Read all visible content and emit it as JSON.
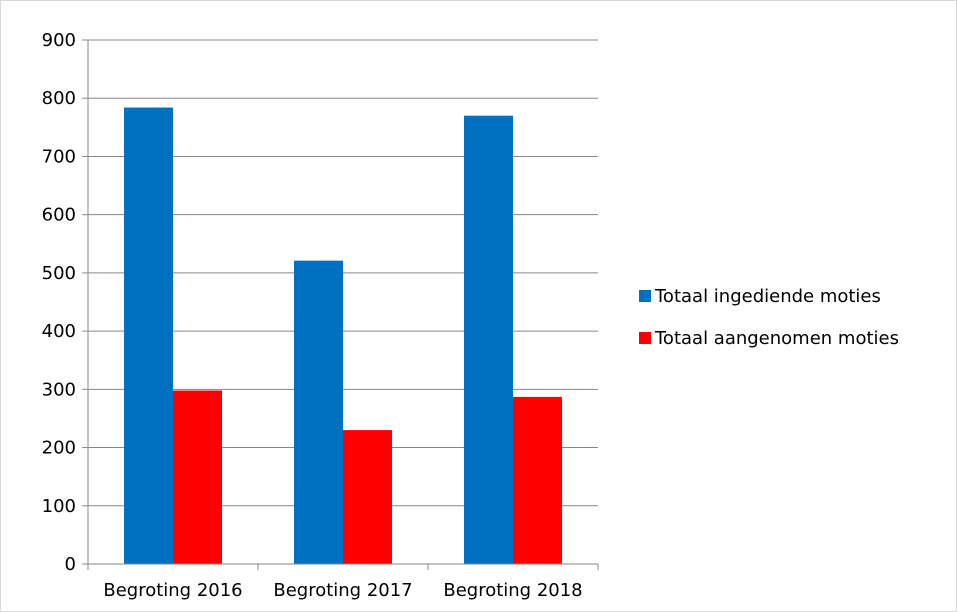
{
  "chart_data": {
    "type": "bar",
    "title": "",
    "xlabel": "",
    "ylabel": "",
    "categories": [
      "Begroting 2016",
      "Begroting 2017",
      "Begroting 2018"
    ],
    "series": [
      {
        "name": "Totaal ingediende moties",
        "values": [
          784,
          521,
          770
        ],
        "color": "#0070c0"
      },
      {
        "name": "Totaal aangenomen moties",
        "values": [
          298,
          230,
          287
        ],
        "color": "#ff0000"
      }
    ],
    "ylim": [
      0,
      900
    ],
    "yticks": [
      0,
      100,
      200,
      300,
      400,
      500,
      600,
      700,
      800,
      900
    ],
    "grid": true,
    "legend": "right"
  }
}
